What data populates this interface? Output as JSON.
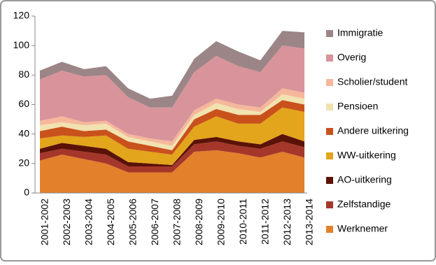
{
  "chart_data": {
    "type": "stacked-area",
    "categories": [
      "2001-2002",
      "2002-2003",
      "2003-2004",
      "2004-2005",
      "2005-2006",
      "2006-2007",
      "2007-2008",
      "2008-2009",
      "2009-2010",
      "2010-2011",
      "2011-2012",
      "2012-2013",
      "2013-2014"
    ],
    "series": [
      {
        "name": "Werknemer",
        "color": "#e2802c",
        "values": [
          22,
          26,
          23,
          20,
          14,
          14,
          14,
          28,
          29,
          27,
          24,
          28,
          24
        ]
      },
      {
        "name": "Zelfstandige",
        "color": "#a5372a",
        "values": [
          5,
          4,
          5,
          6,
          4,
          4,
          4,
          5,
          6,
          5,
          6,
          7,
          7
        ]
      },
      {
        "name": "AO-uitkering",
        "color": "#5b1206",
        "values": [
          3,
          4,
          4,
          4,
          3,
          2,
          1,
          3,
          3,
          3,
          3,
          5,
          4
        ]
      },
      {
        "name": "WW-uitkering",
        "color": "#e3a51b",
        "values": [
          7,
          5,
          6,
          9,
          9,
          8,
          7,
          9,
          14,
          12,
          14,
          18,
          20
        ]
      },
      {
        "name": "Andere uitkering",
        "color": "#c9511c",
        "values": [
          5,
          6,
          4,
          4,
          5,
          4,
          3,
          5,
          5,
          6,
          6,
          5,
          5
        ]
      },
      {
        "name": "Pensioen",
        "color": "#f1e2b0",
        "values": [
          4,
          3,
          4,
          4,
          3,
          3,
          3,
          3,
          4,
          4,
          2,
          4,
          4
        ]
      },
      {
        "name": "Scholier/student",
        "color": "#f6b79a",
        "values": [
          3,
          4,
          2,
          2,
          2,
          2,
          3,
          3,
          3,
          3,
          3,
          4,
          4
        ]
      },
      {
        "name": "Overig",
        "color": "#d8949a",
        "values": [
          28,
          31,
          31,
          31,
          25,
          21,
          23,
          26,
          29,
          26,
          24,
          29,
          30
        ]
      },
      {
        "name": "Immigratie",
        "color": "#9b8587",
        "values": [
          6,
          6,
          5,
          6,
          6,
          6,
          8,
          9,
          10,
          10,
          8,
          10,
          11
        ]
      }
    ],
    "ylim": [
      0,
      120
    ],
    "yticks": [
      0,
      20,
      40,
      60,
      80,
      100,
      120
    ],
    "grid": false,
    "legend": "right"
  }
}
